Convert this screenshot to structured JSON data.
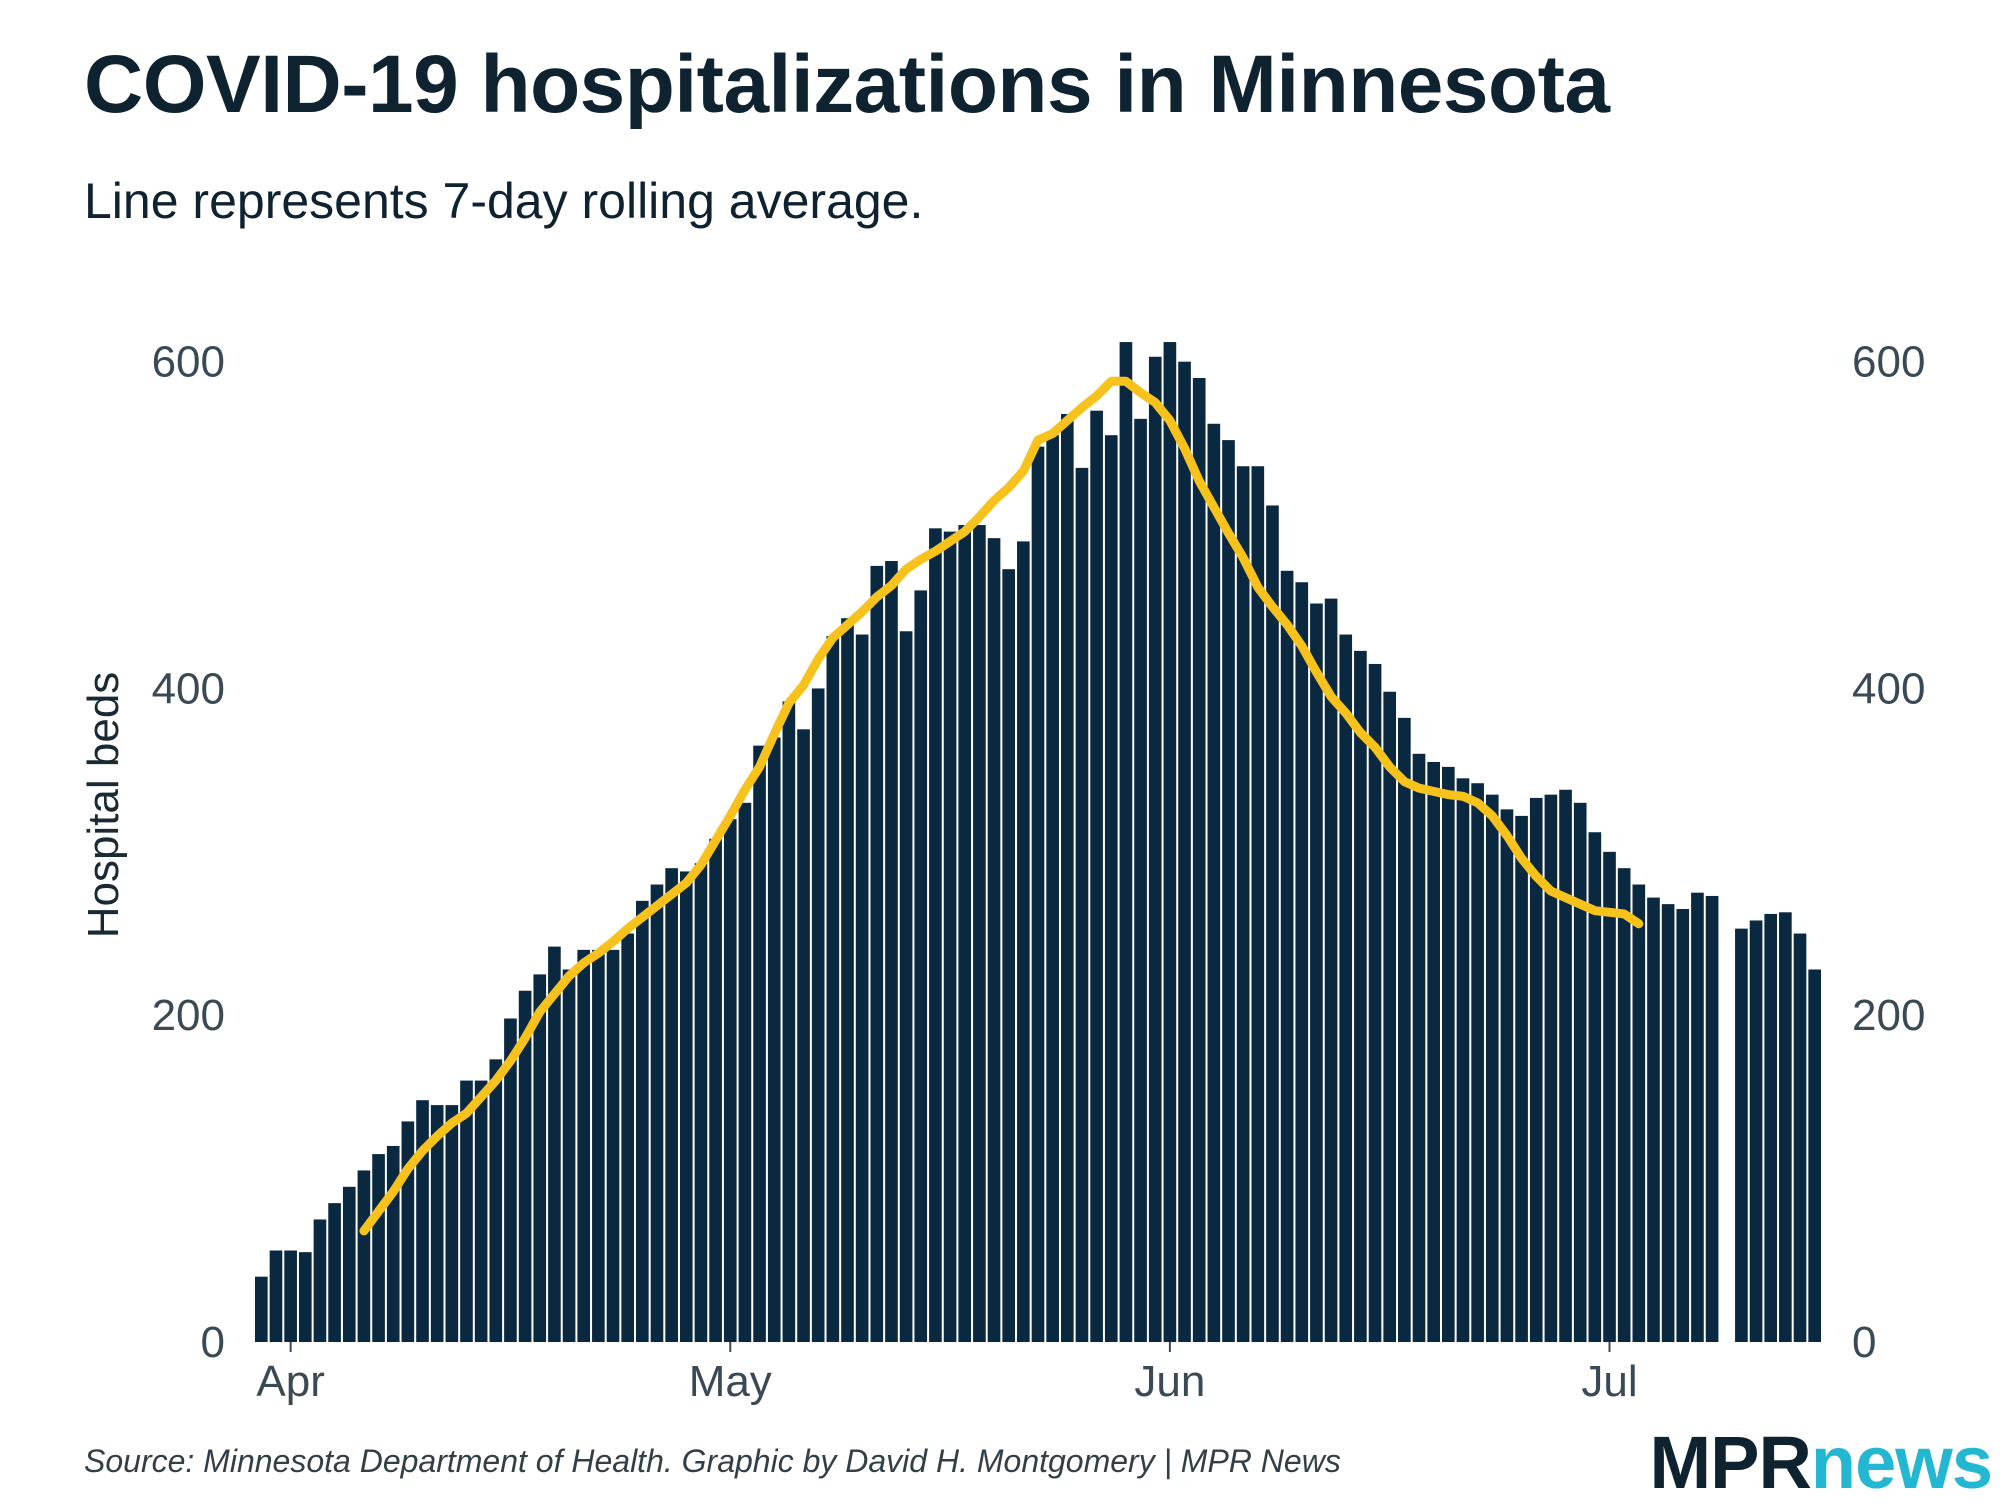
{
  "title": "COVID-19 hospitalizations in Minnesota",
  "subtitle": "Line represents 7-day rolling average.",
  "source": "Source: Minnesota Department of Health. Graphic by David H. Montgomery | MPR News",
  "logo": {
    "part1": "MPR",
    "part2": "news"
  },
  "colors": {
    "bar": "#0a2940",
    "line": "#f8c21c",
    "text": "#0e2230",
    "tick": "#3a4a55",
    "logo_accent": "#23b7d1"
  },
  "chart_data": {
    "type": "bar",
    "title": "COVID-19 hospitalizations in Minnesota",
    "subtitle": "Line represents 7-day rolling average.",
    "xlabel": "",
    "ylabel": "Hospital beds",
    "ylim": [
      0,
      620
    ],
    "yticks": [
      0,
      200,
      400,
      600
    ],
    "yaxis_labels_both_sides": true,
    "grid": false,
    "x_start_day": -1,
    "x_ticks": [
      {
        "label": "Apr",
        "day": 1
      },
      {
        "label": "May",
        "day": 31
      },
      {
        "label": "Jun",
        "day": 61
      },
      {
        "label": "Jul",
        "day": 91
      }
    ],
    "series": [
      {
        "name": "Hospital beds (daily)",
        "type": "bar",
        "values": [
          40,
          56,
          56,
          55,
          75,
          85,
          95,
          105,
          115,
          120,
          135,
          148,
          145,
          145,
          160,
          160,
          173,
          198,
          215,
          225,
          242,
          228,
          240,
          240,
          240,
          250,
          270,
          280,
          290,
          288,
          293,
          308,
          320,
          330,
          365,
          370,
          392,
          375,
          400,
          432,
          443,
          433,
          475,
          478,
          435,
          460,
          498,
          496,
          500,
          500,
          492,
          473,
          490,
          548,
          555,
          568,
          535,
          570,
          555,
          612,
          565,
          603,
          612,
          600,
          590,
          562,
          552,
          536,
          536,
          512,
          472,
          465,
          452,
          455,
          433,
          423,
          415,
          398,
          382,
          360,
          355,
          352,
          345,
          342,
          335,
          326,
          322,
          333,
          335,
          338,
          330,
          312,
          300,
          290,
          280,
          272,
          268,
          265,
          275,
          273,
          null,
          253,
          258,
          262,
          263,
          250,
          228
        ]
      },
      {
        "name": "7-day rolling average",
        "type": "line",
        "start_day": 6,
        "values": [
          68,
          80,
          92,
          106,
          117,
          126,
          134,
          140,
          150,
          160,
          172,
          186,
          202,
          213,
          224,
          232,
          238,
          245,
          253,
          260,
          267,
          274,
          281,
          292,
          307,
          322,
          338,
          352,
          372,
          391,
          402,
          418,
          431,
          439,
          447,
          456,
          463,
          473,
          479,
          484,
          490,
          496,
          505,
          515,
          523,
          533,
          552,
          556,
          564,
          572,
          579,
          588,
          588,
          581,
          575,
          564,
          547,
          527,
          511,
          495,
          480,
          462,
          450,
          439,
          426,
          410,
          395,
          385,
          373,
          364,
          352,
          343,
          339,
          337,
          335,
          334,
          330,
          322,
          310,
          296,
          285,
          276,
          272,
          268,
          264,
          263,
          262,
          256
        ]
      }
    ]
  }
}
